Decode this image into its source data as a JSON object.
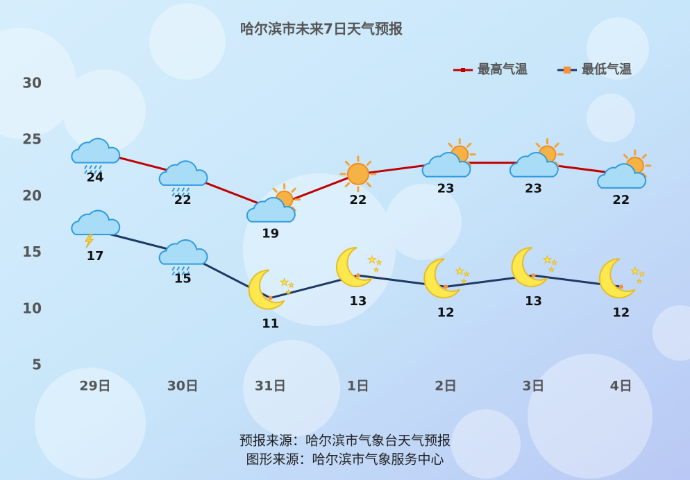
{
  "chart_data": {
    "type": "line",
    "title": "哈尔滨市未来7日天气预报",
    "categories": [
      "29日",
      "30日",
      "31日",
      "1日",
      "2日",
      "3日",
      "4日"
    ],
    "series": [
      {
        "name": "最高气温",
        "color": "#c00000",
        "marker_color": "#c00000",
        "values": [
          24,
          22,
          19,
          22,
          23,
          23,
          22
        ]
      },
      {
        "name": "最低气温",
        "color": "#1f3864",
        "marker_color": "#f4913a",
        "values": [
          17,
          15,
          11,
          13,
          12,
          13,
          12
        ]
      }
    ],
    "ylim": [
      5,
      30
    ],
    "yticks": [
      5,
      10,
      15,
      20,
      25,
      30
    ],
    "grid": false,
    "legend": "top-right",
    "footer": [
      "预报来源：哈尔滨市气象台天气预报",
      "图形来源：哈尔滨市气象服务中心"
    ]
  }
}
